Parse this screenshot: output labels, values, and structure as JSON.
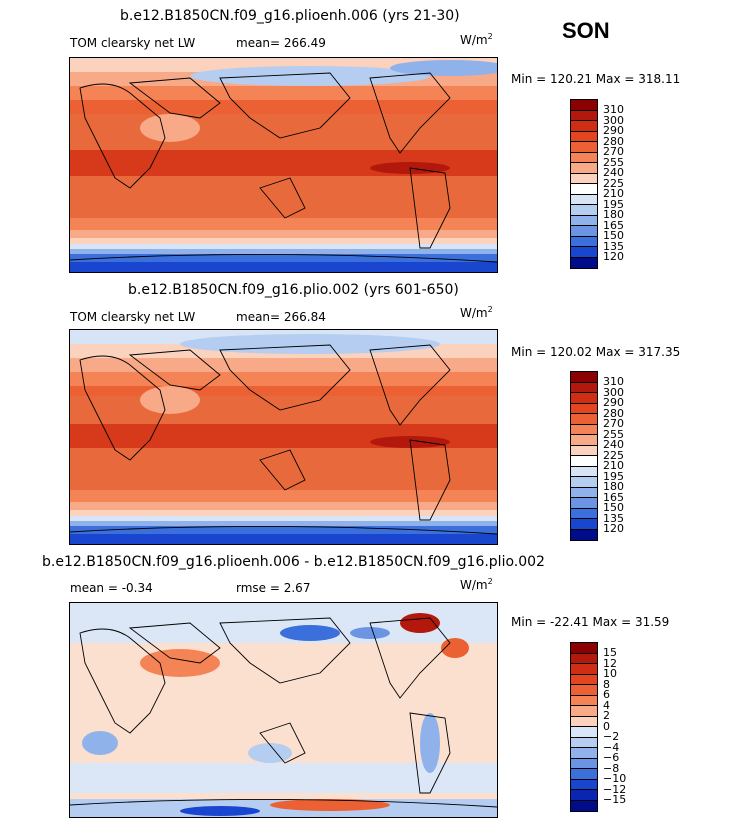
{
  "season": "SON",
  "units_base": "W/m",
  "units_exp": "2",
  "panels": [
    {
      "title": "b.e12.B1850CN.f09_g16.plioenh.006 (yrs 21-30)",
      "left_label": "TOM clearsky net LW",
      "stat_label": "mean= 266.49",
      "minmax": "Min = 120.21  Max = 318.11"
    },
    {
      "title": "b.e12.B1850CN.f09_g16.plio.002 (yrs 601-650)",
      "left_label": "TOM clearsky net LW",
      "stat_label": "mean= 266.84",
      "minmax": "Min = 120.02  Max = 317.35"
    },
    {
      "title": "b.e12.B1850CN.f09_g16.plioenh.006 - b.e12.B1850CN.f09_g16.plio.002",
      "left_label": "mean =  -0.34",
      "stat_label": "rmse =   2.67",
      "minmax": "Min = -22.41  Max =  31.59"
    }
  ],
  "colorbar_abs": {
    "labels": [
      "310",
      "300",
      "290",
      "280",
      "270",
      "255",
      "240",
      "225",
      "210",
      "195",
      "180",
      "165",
      "150",
      "135",
      "120"
    ],
    "colors": [
      "#8b0000",
      "#b3180d",
      "#cf2d14",
      "#e2451f",
      "#ec6134",
      "#f48455",
      "#f8a988",
      "#fbd2bd",
      "#ffffff",
      "#d7e4f6",
      "#b4cdf0",
      "#90b2ea",
      "#6b95e3",
      "#3b6fdb",
      "#1a45cf",
      "#000c8a"
    ]
  },
  "colorbar_diff": {
    "labels": [
      "15",
      "12",
      "10",
      "8",
      "6",
      "4",
      "2",
      "0",
      "−2",
      "−4",
      "−6",
      "−8",
      "−10",
      "−12",
      "−15"
    ],
    "colors": [
      "#8b0000",
      "#b3180d",
      "#cf2d14",
      "#e2451f",
      "#ec6134",
      "#f48455",
      "#f8a988",
      "#fbd2bd",
      "#d9e6f8",
      "#b4cdf0",
      "#90b2ea",
      "#6b95e3",
      "#3b6fdb",
      "#1a45cf",
      "#0a25b0",
      "#000c8a"
    ]
  }
}
